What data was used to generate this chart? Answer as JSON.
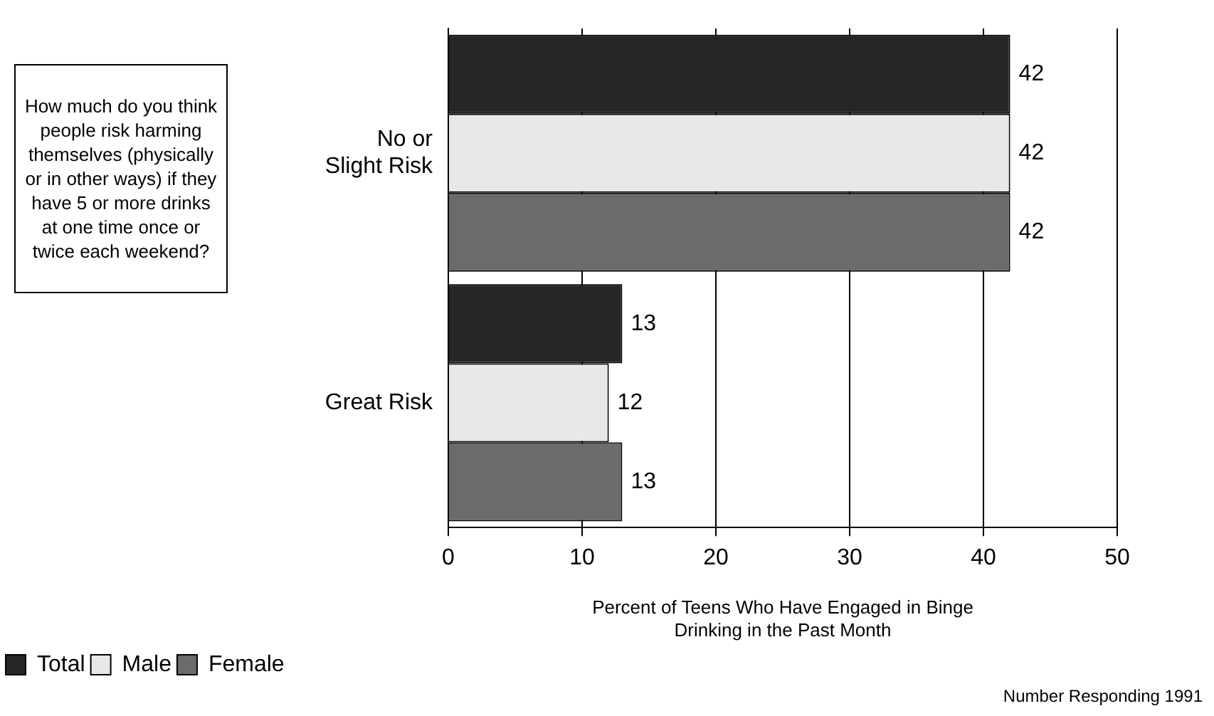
{
  "chart_data": {
    "type": "bar",
    "orientation": "horizontal",
    "categories": [
      "No or\nSlight Risk",
      "Great Risk"
    ],
    "series": [
      {
        "name": "Total",
        "color": "#262626",
        "values": [
          42,
          13
        ]
      },
      {
        "name": "Male",
        "color": "#e8e8e8",
        "values": [
          42,
          12
        ]
      },
      {
        "name": "Female",
        "color": "#6b6b6b",
        "values": [
          42,
          13
        ]
      }
    ],
    "xlim": [
      0,
      50
    ],
    "xticks": [
      0,
      10,
      20,
      30,
      40,
      50
    ],
    "grid": "x",
    "legend": "bottom left",
    "data_labels": true,
    "xlabel": "Percent of Teens Who Have Engaged in Binge Drinking in the Past Month",
    "annotations": [
      "How much do you think people risk harming themselves (physically or in other ways)  if they have 5 or more drinks at one time once or twice each weekend?",
      "Number Responding 1991"
    ]
  }
}
